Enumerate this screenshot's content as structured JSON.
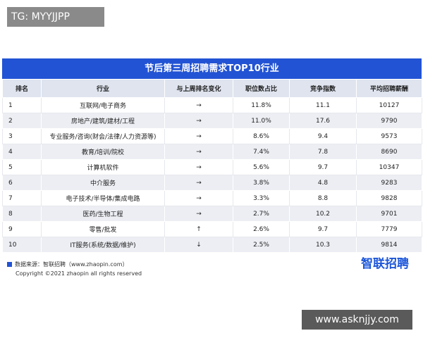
{
  "watermark_top": "TG: MYYJJPP",
  "table": {
    "title": "节后第三周招聘需求TOP10行业",
    "header": [
      "排名",
      "行业",
      "与上周排名变化",
      "职位数占比",
      "竞争指数",
      "平均招聘薪酬"
    ],
    "rows": [
      [
        "1",
        "互联网/电子商务",
        "→",
        "11.8%",
        "11.1",
        "10127"
      ],
      [
        "2",
        "房地产/建筑/建材/工程",
        "→",
        "11.0%",
        "17.6",
        "9790"
      ],
      [
        "3",
        "专业服务/咨询(财会/法律/人力资源等)",
        "→",
        "8.6%",
        "9.4",
        "9573"
      ],
      [
        "4",
        "教育/培训/院校",
        "→",
        "7.4%",
        "7.8",
        "8690"
      ],
      [
        "5",
        "计算机软件",
        "→",
        "5.6%",
        "9.7",
        "10347"
      ],
      [
        "6",
        "中介服务",
        "→",
        "3.8%",
        "4.8",
        "9283"
      ],
      [
        "7",
        "电子技术/半导体/集成电路",
        "→",
        "3.3%",
        "8.8",
        "9828"
      ],
      [
        "8",
        "医药/生物工程",
        "→",
        "2.7%",
        "10.2",
        "9701"
      ],
      [
        "9",
        "零售/批发",
        "↑",
        "2.6%",
        "9.7",
        "7779"
      ],
      [
        "10",
        "IT服务(系统/数据/维护)",
        "↓",
        "2.5%",
        "10.3",
        "9814"
      ]
    ]
  },
  "footer": {
    "source": "数据来源：智联招聘（www.zhaopin.com）",
    "copyright": "Copyright ©2021 zhaopin all rights reserved",
    "logo": "智联招聘"
  },
  "watermark_bottom": "www.asknjjy.com"
}
